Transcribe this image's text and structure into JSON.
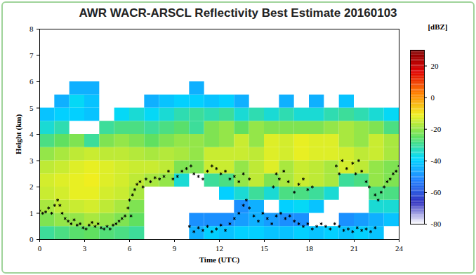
{
  "chart_data": {
    "type": "heatmap",
    "title": "AWR WACR-ARSCL Reflectivity Best Estimate 20160103",
    "x_label": "Time (UTC)",
    "y_label": "Height (km)",
    "xlim": [
      0,
      24
    ],
    "xticks": [
      0,
      3,
      6,
      9,
      12,
      15,
      18,
      21,
      24
    ],
    "ylim": [
      0,
      8
    ],
    "yticks": [
      0,
      1,
      2,
      3,
      4,
      5,
      6,
      7,
      8
    ],
    "cells": {
      "x_edges": [
        0,
        1,
        2,
        3,
        4,
        5,
        6,
        7,
        8,
        9,
        10,
        11,
        12,
        13,
        14,
        15,
        16,
        17,
        18,
        19,
        20,
        21,
        22,
        23,
        24
      ],
      "y_edges": [
        0,
        0.5,
        1,
        1.5,
        2,
        2.5,
        3,
        3.5,
        4,
        4.5,
        5,
        5.5,
        6
      ],
      "values": [
        [
          -30,
          -28,
          -26,
          -25,
          -27,
          -28,
          -30,
          null,
          null,
          null,
          -45,
          -40,
          -42,
          -40,
          -40,
          -42,
          -42,
          -40,
          -42,
          -40,
          -42,
          -40,
          -42,
          null
        ],
        [
          -22,
          -20,
          -20,
          -18,
          -20,
          -22,
          -25,
          null,
          null,
          null,
          -50,
          -50,
          -50,
          -48,
          -45,
          -48,
          -50,
          -50,
          null,
          null,
          -50,
          -48,
          -45,
          -42
        ],
        [
          -18,
          -16,
          -15,
          -14,
          -16,
          -18,
          -22,
          null,
          null,
          null,
          null,
          null,
          null,
          -50,
          -45,
          null,
          -40,
          -38,
          -42,
          null,
          null,
          null,
          -35,
          -35
        ],
        [
          -15,
          -14,
          -12,
          -12,
          -14,
          -15,
          -18,
          null,
          null,
          null,
          null,
          null,
          -40,
          -35,
          -30,
          -35,
          -28,
          -28,
          -30,
          -35,
          null,
          null,
          -28,
          -28
        ],
        [
          -14,
          -13,
          -12,
          -11,
          -13,
          -14,
          -16,
          -18,
          -20,
          -35,
          null,
          -30,
          -28,
          -20,
          -16,
          -22,
          -18,
          -15,
          -16,
          -18,
          -30,
          -28,
          -20,
          -22
        ],
        [
          -16,
          -15,
          -13,
          -12,
          -13,
          -14,
          -15,
          -15,
          -16,
          -22,
          -22,
          -15,
          -15,
          -20,
          -16,
          -13,
          -18,
          -15,
          -16,
          -18,
          -14,
          -16,
          -20,
          -22
        ],
        [
          -20,
          -18,
          -16,
          -15,
          -16,
          -16,
          -17,
          -18,
          -17,
          -18,
          -20,
          -15,
          -15,
          -15,
          -16,
          -13,
          -14,
          -12,
          -13,
          -13,
          -14,
          -16,
          -15,
          -18
        ],
        [
          -28,
          -25,
          -22,
          -30,
          -22,
          -20,
          -22,
          -25,
          -22,
          -20,
          -20,
          -22,
          -20,
          -15,
          -20,
          -13,
          -14,
          -12,
          -13,
          -13,
          -18,
          -20,
          -15,
          -18
        ],
        [
          -35,
          -32,
          null,
          null,
          -30,
          -28,
          -28,
          -30,
          -28,
          -26,
          -30,
          -22,
          -20,
          -25,
          -20,
          -22,
          -22,
          -22,
          -22,
          -20,
          -18,
          -20,
          -22,
          -28
        ],
        [
          -42,
          -40,
          -40,
          -42,
          null,
          -38,
          -35,
          -38,
          -35,
          -32,
          -30,
          -32,
          -30,
          -35,
          -32,
          -35,
          -32,
          -35,
          -35,
          -32,
          -30,
          -32,
          -35,
          -38
        ],
        [
          null,
          -45,
          -38,
          -42,
          null,
          null,
          null,
          -45,
          -42,
          -40,
          -40,
          -42,
          -40,
          -45,
          null,
          null,
          -45,
          null,
          -45,
          null,
          -42,
          null,
          null,
          null
        ],
        [
          null,
          null,
          -45,
          -45,
          null,
          null,
          null,
          null,
          null,
          null,
          -45,
          null,
          null,
          null,
          null,
          null,
          null,
          null,
          null,
          null,
          null,
          null,
          null,
          null
        ]
      ]
    },
    "colorbar": {
      "range": [
        -80,
        30
      ],
      "ticks": [
        -80,
        -60,
        -40,
        -20,
        0,
        20
      ],
      "label": "[dBZ]"
    },
    "scatter": {
      "color": "#000000",
      "marker": "asterisk",
      "x": [
        0,
        0.2,
        0.4,
        0.6,
        0.8,
        1,
        1.2,
        1.35,
        1.5,
        1.7,
        1.9,
        2.1,
        2.3,
        2.5,
        2.7,
        2.9,
        3.1,
        3.3,
        3.5,
        3.7,
        3.9,
        4.1,
        4.3,
        4.5,
        4.7,
        4.9,
        5.1,
        5.3,
        5.5,
        5.7,
        5.9,
        6,
        6.1,
        6.2,
        6.35,
        6.5,
        6.7,
        6.9,
        7.1,
        7.4,
        7.7,
        8,
        8.3,
        8.6,
        8.9,
        9.2,
        9.5,
        9.8,
        10.1,
        10.3,
        10.6,
        10.9,
        11.2,
        11.5,
        11.8,
        12.1,
        12.4,
        12.7,
        13,
        13.3,
        13.6,
        14,
        10,
        10.3,
        10.6,
        10.9,
        11.2,
        11.5,
        11.8,
        12.1,
        12.4,
        12.7,
        13,
        13.3,
        13.6,
        13.8,
        14,
        14.3,
        14.6,
        14.9,
        15.2,
        15.5,
        15.8,
        16.1,
        16.4,
        16.7,
        17,
        17.3,
        17.6,
        17.9,
        18.2,
        18.5,
        18.8,
        19.1,
        19.4,
        19.7,
        20,
        20.3,
        20.6,
        20.9,
        21.2,
        21.5,
        21.8,
        22.1,
        22.4,
        15.6,
        15.8,
        16,
        16.3,
        16.6,
        17,
        17.3,
        17.6,
        17.9,
        18.2,
        19.8,
        20,
        20.2,
        20.5,
        20.9,
        21.1,
        21.3,
        21.5,
        21.8,
        22,
        22.4,
        22.6,
        22.8,
        23,
        23.2,
        23.4,
        23.6,
        23.8,
        24
      ],
      "y": [
        1.1,
        1,
        1.05,
        1.2,
        1,
        1.3,
        1.5,
        1.3,
        1,
        0.8,
        0.7,
        0.6,
        0.75,
        0.55,
        0.6,
        0.45,
        0.4,
        0.55,
        0.65,
        0.5,
        0.6,
        0.45,
        0.4,
        0.5,
        0.4,
        0.55,
        0.6,
        0.7,
        0.8,
        0.9,
        1.2,
        1.5,
        0.9,
        1.7,
        1.9,
        2.1,
        2.2,
        2,
        2.3,
        2.2,
        2.35,
        2.3,
        2.4,
        2.6,
        2.3,
        2.4,
        2.6,
        2.7,
        2.8,
        2.5,
        2.4,
        2.3,
        2.6,
        2.8,
        2.7,
        2.5,
        2.6,
        2.3,
        2.4,
        2.2,
        2.5,
        2.3,
        0.5,
        0.3,
        0.45,
        0.35,
        0.5,
        0.3,
        0.4,
        0.55,
        0.35,
        0.6,
        0.8,
        1,
        1.3,
        1.5,
        1.2,
        0.9,
        0.7,
        1,
        0.8,
        0.6,
        0.9,
        1,
        0.8,
        0.9,
        0.7,
        0.6,
        0.5,
        0.6,
        0.4,
        0.5,
        0.6,
        0.5,
        0.4,
        0.6,
        0.5,
        0.35,
        0.4,
        0.3,
        0.45,
        0.35,
        0.4,
        0.3,
        0.45,
        2,
        2.5,
        2.3,
        2.6,
        2.2,
        1.8,
        2.1,
        2.3,
        1.9,
        2,
        2.8,
        2.5,
        3,
        2.7,
        2.9,
        2.5,
        3,
        2.6,
        2.2,
        2,
        1.7,
        1.5,
        1.8,
        2,
        2.2,
        2.3,
        2.5,
        2.6,
        2.8
      ]
    }
  }
}
